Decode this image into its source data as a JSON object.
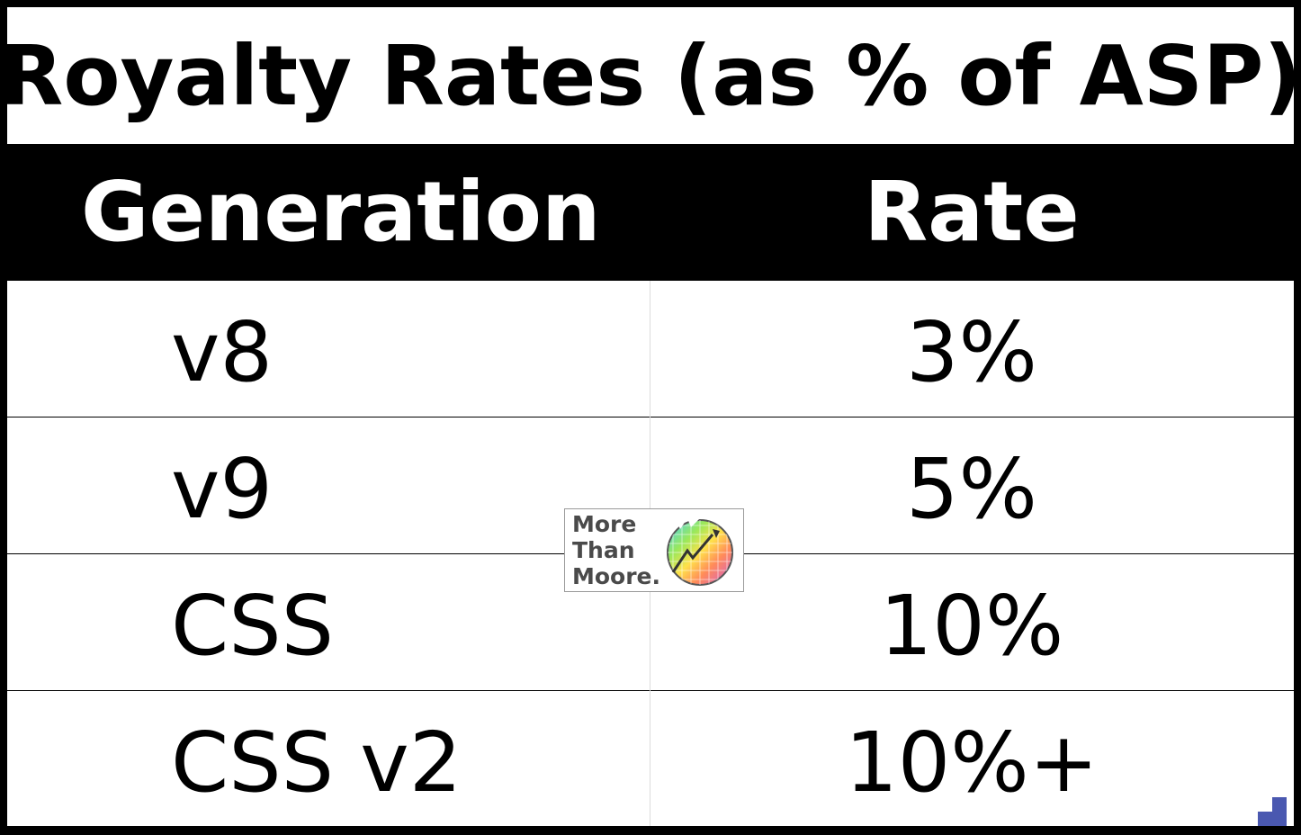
{
  "chart_data": {
    "type": "table",
    "title": "Royalty Rates (as % of ASP)",
    "columns": [
      "Generation",
      "Rate"
    ],
    "rows": [
      {
        "generation": "v8",
        "rate": "3%"
      },
      {
        "generation": "v9",
        "rate": "5%"
      },
      {
        "generation": "CSS",
        "rate": "10%"
      },
      {
        "generation": "CSS v2",
        "rate": "10%+"
      }
    ]
  },
  "watermark": {
    "lines": [
      "More",
      "Than",
      "Moore."
    ],
    "icon": "rainbow-chart-circle-icon"
  },
  "colors": {
    "header_bg": "#000000",
    "header_text": "#ffffff",
    "body_bg": "#ffffff",
    "body_text": "#000000",
    "corner_accent": "#4a58b0"
  }
}
